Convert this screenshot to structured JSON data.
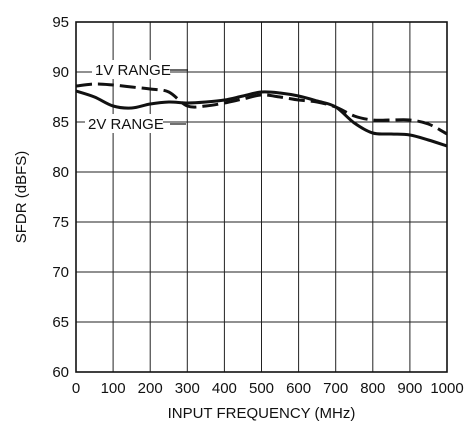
{
  "chart_data": {
    "type": "line",
    "title": "",
    "xlabel": "INPUT FREQUENCY (MHz)",
    "ylabel": "SFDR (dBFS)",
    "xlim": [
      0,
      1000
    ],
    "ylim": [
      60,
      95
    ],
    "x_ticks": [
      0,
      100,
      200,
      300,
      400,
      500,
      600,
      700,
      800,
      900,
      1000
    ],
    "x_tick_labels": [
      "0",
      "100",
      "200",
      "300",
      "400",
      "500",
      "600",
      "700",
      "800",
      "900",
      "1000"
    ],
    "y_ticks": [
      60,
      65,
      70,
      75,
      80,
      85,
      90,
      95
    ],
    "y_tick_labels": [
      "60",
      "65",
      "70",
      "75",
      "80",
      "85",
      "90",
      "95"
    ],
    "grid": true,
    "series": [
      {
        "name": "1V RANGE",
        "style": "dashed",
        "color": "#111111",
        "x": [
          0,
          50,
          100,
          150,
          200,
          250,
          300,
          350,
          400,
          450,
          500,
          550,
          600,
          650,
          700,
          750,
          800,
          850,
          900,
          950,
          1000
        ],
        "y": [
          88.6,
          88.8,
          88.7,
          88.5,
          88.3,
          88.0,
          86.6,
          86.6,
          86.9,
          87.3,
          87.7,
          87.5,
          87.2,
          87.0,
          86.5,
          85.6,
          85.2,
          85.2,
          85.2,
          84.8,
          83.8
        ]
      },
      {
        "name": "2V RANGE",
        "style": "solid",
        "color": "#111111",
        "x": [
          0,
          50,
          100,
          150,
          200,
          250,
          300,
          350,
          400,
          450,
          500,
          550,
          600,
          650,
          700,
          750,
          800,
          850,
          900,
          950,
          1000
        ],
        "y": [
          88.1,
          87.5,
          86.6,
          86.4,
          86.8,
          87.0,
          86.9,
          87.0,
          87.2,
          87.6,
          88.0,
          87.9,
          87.6,
          87.1,
          86.5,
          84.9,
          83.9,
          83.8,
          83.7,
          83.2,
          82.6
        ]
      }
    ],
    "annotations": [
      {
        "text": "1V RANGE",
        "series": "1V RANGE"
      },
      {
        "text": "2V RANGE",
        "series": "2V RANGE"
      }
    ]
  }
}
